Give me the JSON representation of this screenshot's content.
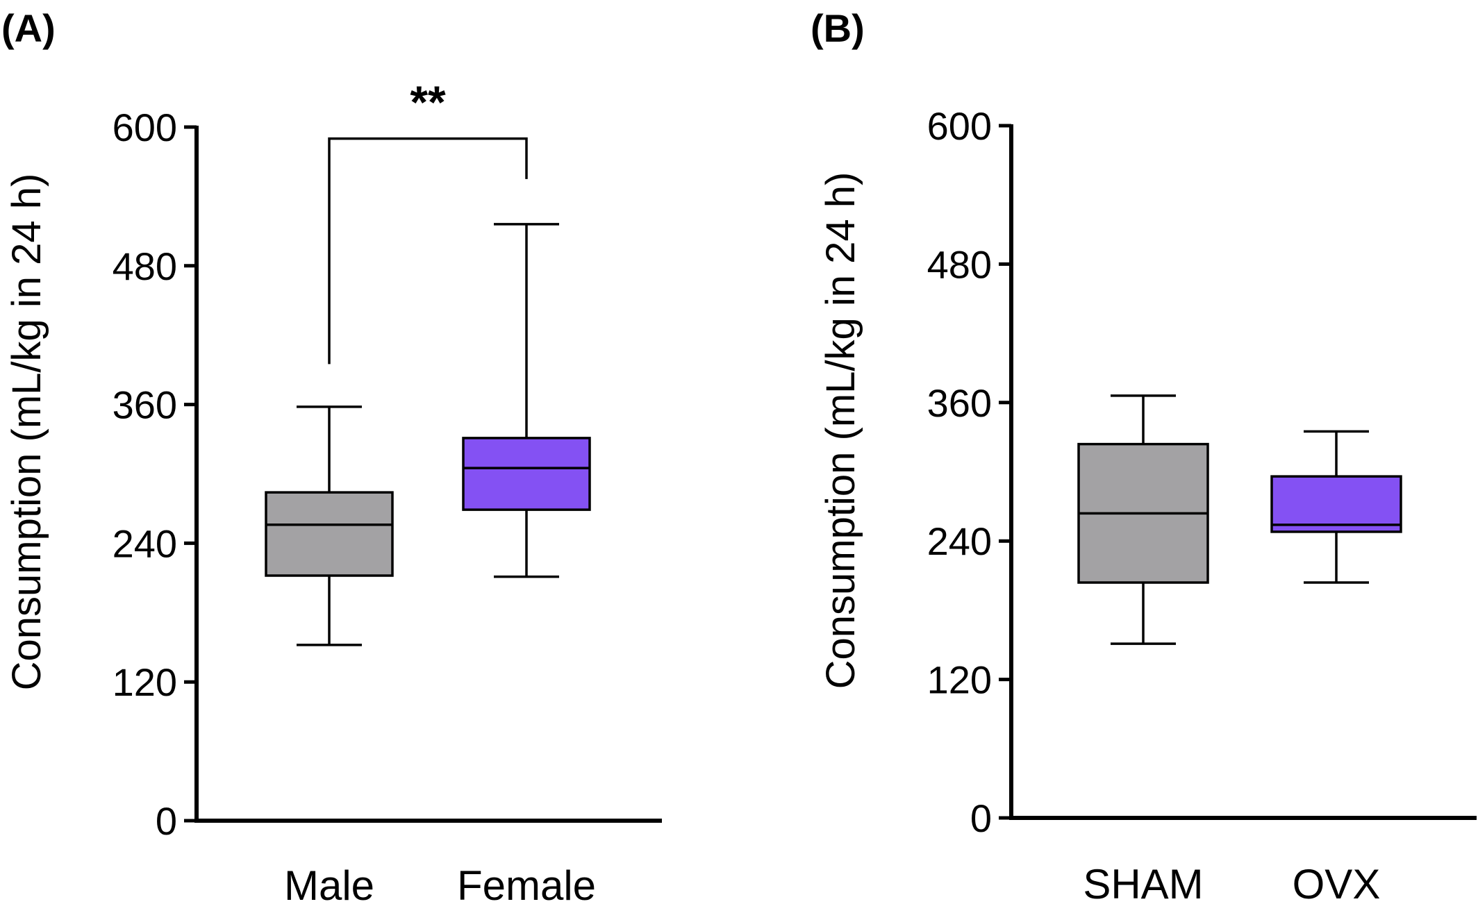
{
  "chart_data": [
    {
      "type": "box",
      "panel_label": "(A)",
      "title": "",
      "xlabel": "",
      "ylabel": "Consumption (mL/kg in 24 h)",
      "ylim": [
        0,
        600
      ],
      "yticks": [
        0,
        120,
        240,
        360,
        480,
        600
      ],
      "grid": false,
      "categories": [
        "Male",
        "Female"
      ],
      "series": [
        {
          "category": "Male",
          "min": 152,
          "q1": 212,
          "median": 256,
          "q3": 284,
          "max": 358,
          "color": "#a3a2a4"
        },
        {
          "category": "Female",
          "min": 211,
          "q1": 269,
          "median": 305,
          "q3": 331,
          "max": 516,
          "color": "#8451f3"
        }
      ],
      "significance": {
        "text": "**",
        "between": [
          "Male",
          "Female"
        ],
        "left_y": 395,
        "right_y": 555,
        "bar_y": 590
      }
    },
    {
      "type": "box",
      "panel_label": "(B)",
      "title": "",
      "xlabel": "",
      "ylabel": "Consumption (mL/kg in 24 h)",
      "ylim": [
        0,
        600
      ],
      "yticks": [
        0,
        120,
        240,
        360,
        480,
        600
      ],
      "grid": false,
      "categories": [
        "SHAM",
        "OVX"
      ],
      "series": [
        {
          "category": "SHAM",
          "min": 151,
          "q1": 204,
          "median": 264,
          "q3": 324,
          "max": 366,
          "color": "#a3a2a4"
        },
        {
          "category": "OVX",
          "min": 204,
          "q1": 248,
          "median": 254,
          "q3": 296,
          "max": 335,
          "color": "#8451f3"
        }
      ]
    }
  ]
}
